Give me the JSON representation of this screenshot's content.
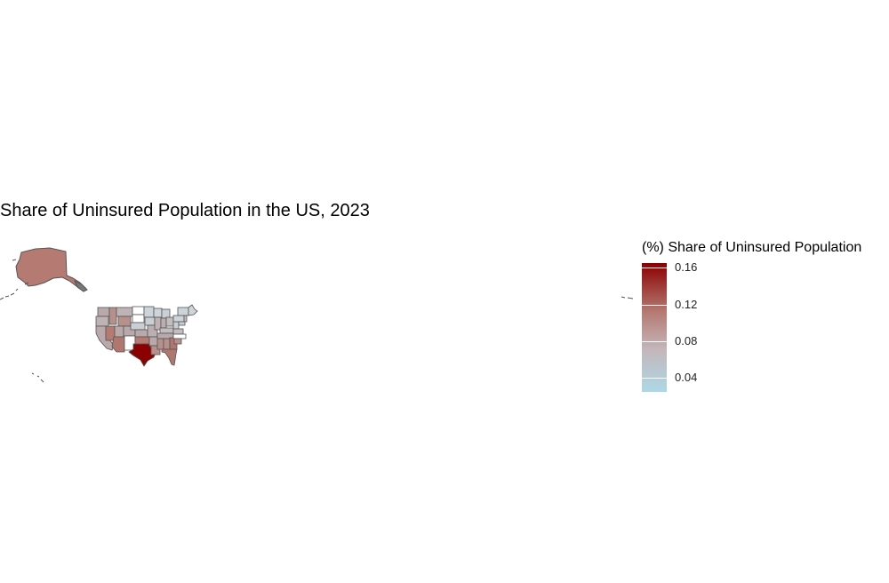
{
  "title": "Share of Uninsured Population in the US, 2023",
  "legend": {
    "title": "(%) Share of Uninsured Population",
    "min": 0.025,
    "max": 0.165,
    "low_color": "#add8e6",
    "high_color": "#8b0000",
    "ticks": [
      {
        "label": "0.16",
        "value": 0.16
      },
      {
        "label": "0.12",
        "value": 0.12
      },
      {
        "label": "0.08",
        "value": 0.08
      },
      {
        "label": "0.04",
        "value": 0.04
      }
    ]
  },
  "colors": {
    "border": "#555555",
    "no_data": "#ffffff",
    "background": "#ffffff"
  }
}
